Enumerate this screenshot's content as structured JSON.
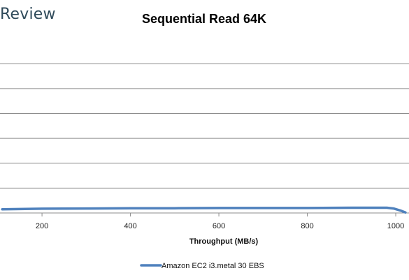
{
  "brand": {
    "name": "Review"
  },
  "chart_data": {
    "type": "line",
    "title": "Sequential Read 64K",
    "xlabel": "Throughput  (MB/s)",
    "ylabel": "",
    "xlim": [
      105,
      1030
    ],
    "ylim": [
      0,
      8
    ],
    "grid": true,
    "x_ticks": [
      200,
      400,
      600,
      800,
      1000
    ],
    "y_gridlines": [
      1,
      2,
      3,
      4,
      5,
      6,
      7,
      8
    ],
    "legend_position": "bottom",
    "series": [
      {
        "name": "Amazon EC2 i3.metal 30 EBS",
        "color": "#4f81bd",
        "x": [
          110,
          200,
          300,
          400,
          500,
          600,
          700,
          800,
          900,
          980,
          995,
          1010,
          1022
        ],
        "y": [
          0.15,
          0.17,
          0.18,
          0.19,
          0.19,
          0.2,
          0.2,
          0.2,
          0.21,
          0.21,
          0.18,
          0.1,
          0.02
        ]
      }
    ]
  }
}
